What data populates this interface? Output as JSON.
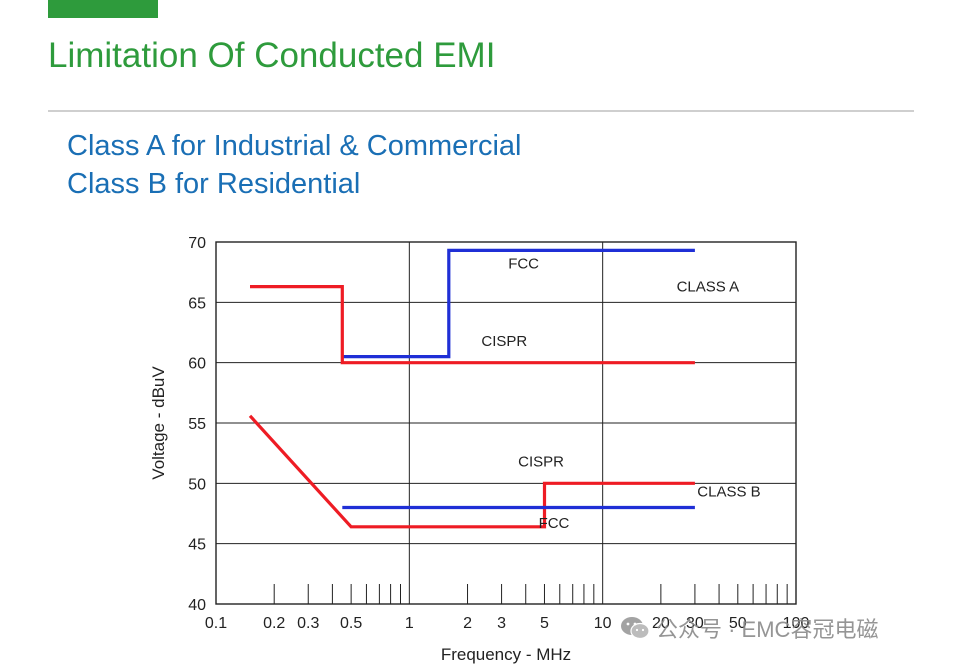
{
  "header": {
    "title": "Limitation Of Conducted EMI",
    "subtitle_lines": [
      "Class A for Industrial & Commercial",
      "Class B for Residential"
    ]
  },
  "watermark": {
    "text": "公众号 · EMC容冠电磁",
    "icon": "wechat-icon"
  },
  "colors": {
    "accent": "#2e9b3c",
    "subtitle": "#1a6fb5",
    "fcc": "#1f2fd6",
    "cispr": "#ee1c24"
  },
  "chart_data": {
    "type": "line",
    "xlabel": "Frequency - MHz",
    "ylabel": "Voltage - dBuV",
    "xscale": "log",
    "xlim": [
      0.1,
      100
    ],
    "ylim": [
      40,
      70
    ],
    "x_ticklabels": [
      "0.1",
      "0.2",
      "0.3",
      "0.5",
      "1",
      "2",
      "3",
      "5",
      "10",
      "20",
      "30",
      "50",
      "100"
    ],
    "y_ticks": [
      40,
      45,
      50,
      55,
      60,
      65,
      70
    ],
    "grid": true,
    "series": [
      {
        "name": "FCC",
        "group": "CLASS A",
        "color": "#1f2fd6",
        "points": [
          [
            0.45,
            60.5
          ],
          [
            1.6,
            60.5
          ],
          [
            1.6,
            69.3
          ],
          [
            30,
            69.3
          ]
        ]
      },
      {
        "name": "CISPR",
        "group": "CLASS A",
        "color": "#ee1c24",
        "points": [
          [
            0.15,
            66.3
          ],
          [
            0.45,
            66.3
          ],
          [
            0.45,
            60
          ],
          [
            30,
            60
          ]
        ]
      },
      {
        "name": "CISPR",
        "group": "CLASS B",
        "color": "#ee1c24",
        "points": [
          [
            0.15,
            55.6
          ],
          [
            0.5,
            46.4
          ],
          [
            5,
            46.4
          ],
          [
            5,
            50
          ],
          [
            30,
            50
          ]
        ]
      },
      {
        "name": "FCC",
        "group": "CLASS B",
        "color": "#1f2fd6",
        "points": [
          [
            0.45,
            48
          ],
          [
            30,
            48
          ]
        ]
      }
    ],
    "annotations": [
      {
        "text": "FCC",
        "x": 3.9,
        "y": 67.8
      },
      {
        "text": "CLASS A",
        "x": 35,
        "y": 65.9
      },
      {
        "text": "CISPR",
        "x": 3.1,
        "y": 61.4
      },
      {
        "text": "CISPR",
        "x": 4.8,
        "y": 51.4
      },
      {
        "text": "CLASS B",
        "x": 45,
        "y": 48.9
      },
      {
        "text": "FCC",
        "x": 5.6,
        "y": 46.3
      }
    ]
  }
}
